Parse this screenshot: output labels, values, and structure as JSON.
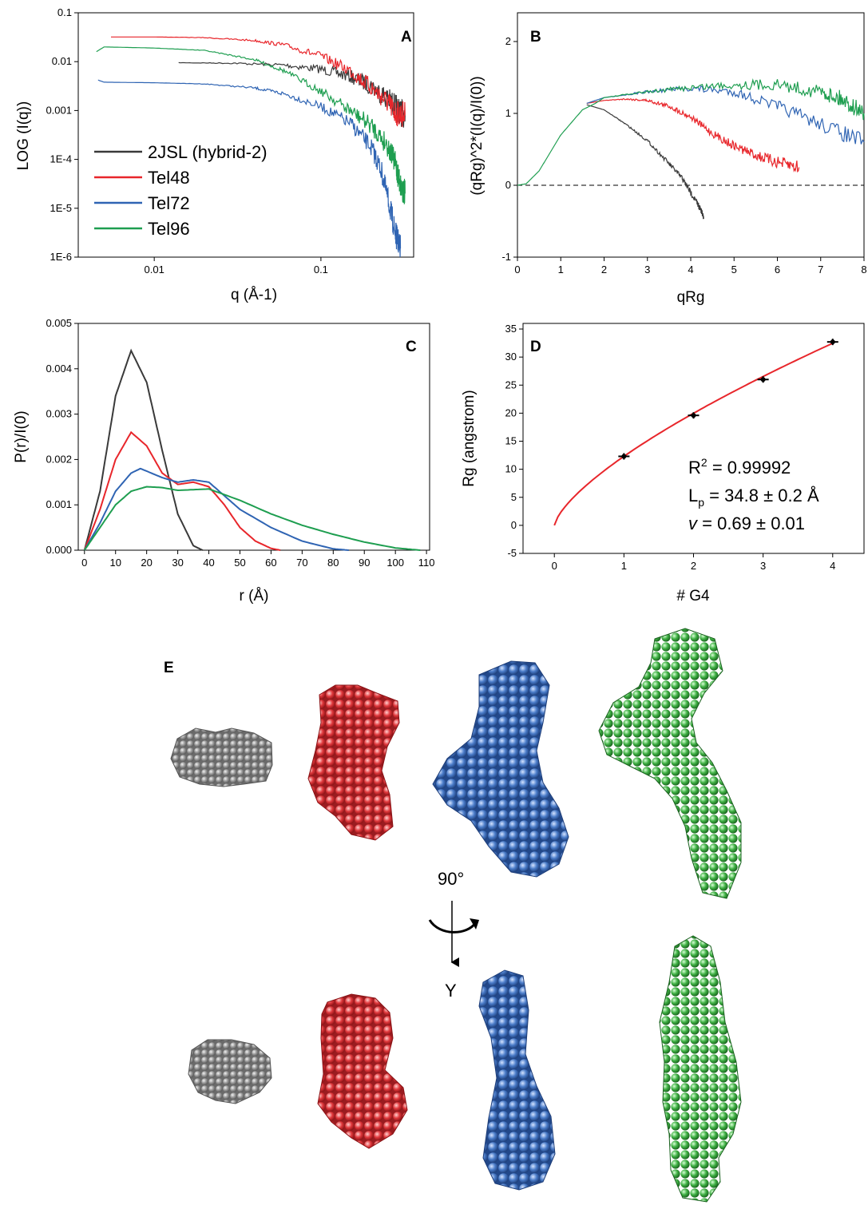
{
  "series_colors": {
    "2JSL (hybrid-2)": "#3a3a3a",
    "Tel48": "#e8262b",
    "Tel72": "#2f64b3",
    "Tel96": "#1e9e50"
  },
  "chart_data": [
    {
      "panel": "A",
      "type": "line",
      "xscale": "log",
      "yscale": "log",
      "xlabel": "q (Å-1)",
      "ylabel": "LOG (I(q))",
      "xlim": [
        0.0035,
        0.36
      ],
      "ylim": [
        1e-06,
        0.1
      ],
      "xticks": [
        {
          "v": 0.01,
          "t": "0.01"
        },
        {
          "v": 0.1,
          "t": "0.1"
        }
      ],
      "yticks": [
        {
          "v": 0.1,
          "t": "0.1"
        },
        {
          "v": 0.01,
          "t": "0.01"
        },
        {
          "v": 0.001,
          "t": "0.001"
        },
        {
          "v": 0.0001,
          "t": "1E-4"
        },
        {
          "v": 1e-05,
          "t": "1E-5"
        },
        {
          "v": 1e-06,
          "t": "1E-6"
        }
      ],
      "legend": "lower-left",
      "series": [
        {
          "name": "2JSL (hybrid-2)",
          "x": [
            0.014,
            0.03,
            0.06,
            0.1,
            0.15,
            0.2,
            0.25,
            0.28,
            0.3,
            0.32
          ],
          "y": [
            0.0095,
            0.0093,
            0.0085,
            0.007,
            0.005,
            0.0032,
            0.0018,
            0.0012,
            0.0009,
            0.0008
          ]
        },
        {
          "name": "Tel48",
          "x": [
            0.0055,
            0.01,
            0.02,
            0.04,
            0.06,
            0.1,
            0.15,
            0.2,
            0.25,
            0.28,
            0.32
          ],
          "y": [
            0.032,
            0.032,
            0.031,
            0.027,
            0.022,
            0.013,
            0.0065,
            0.003,
            0.0015,
            0.0009,
            0.0008
          ]
        },
        {
          "name": "Tel72",
          "x": [
            0.0046,
            0.005,
            0.01,
            0.02,
            0.04,
            0.06,
            0.1,
            0.15,
            0.2,
            0.23,
            0.26,
            0.28,
            0.3
          ],
          "y": [
            0.0042,
            0.0038,
            0.0037,
            0.0035,
            0.0029,
            0.0022,
            0.0012,
            0.00055,
            0.00018,
            6e-05,
            1e-05,
            3e-06,
            1.5e-06
          ]
        },
        {
          "name": "Tel96",
          "x": [
            0.0045,
            0.005,
            0.01,
            0.02,
            0.04,
            0.06,
            0.1,
            0.15,
            0.2,
            0.25,
            0.28,
            0.3,
            0.32
          ],
          "y": [
            0.016,
            0.02,
            0.019,
            0.017,
            0.011,
            0.0065,
            0.0025,
            0.001,
            0.0005,
            0.0002,
            8e-05,
            3e-05,
            2e-05
          ]
        }
      ]
    },
    {
      "panel": "B",
      "type": "line",
      "xlabel": "qRg",
      "ylabel": "(qRg)^2*(I(q)/I(0))",
      "xlim": [
        0,
        8
      ],
      "ylim": [
        -1,
        2.4
      ],
      "xticks": [
        {
          "v": 0,
          "t": "0"
        },
        {
          "v": 1,
          "t": "1"
        },
        {
          "v": 2,
          "t": "2"
        },
        {
          "v": 3,
          "t": "3"
        },
        {
          "v": 4,
          "t": "4"
        },
        {
          "v": 5,
          "t": "5"
        },
        {
          "v": 6,
          "t": "6"
        },
        {
          "v": 7,
          "t": "7"
        },
        {
          "v": 8,
          "t": "8"
        }
      ],
      "yticks": [
        {
          "v": -1,
          "t": "-1"
        },
        {
          "v": 0,
          "t": "0"
        },
        {
          "v": 1,
          "t": "1"
        },
        {
          "v": 2,
          "t": "2"
        }
      ],
      "reference_line": 0,
      "series": [
        {
          "name": "2JSL (hybrid-2)",
          "x": [
            1.6,
            2,
            2.5,
            3,
            3.5,
            3.8,
            4,
            4.2,
            4.3
          ],
          "y": [
            1.12,
            1.05,
            0.85,
            0.62,
            0.3,
            0.1,
            -0.1,
            -0.3,
            -0.45
          ]
        },
        {
          "name": "Tel48",
          "x": [
            1.6,
            2,
            2.5,
            3,
            3.5,
            4,
            4.5,
            5,
            5.5,
            6,
            6.5
          ],
          "y": [
            1.14,
            1.18,
            1.2,
            1.18,
            1.1,
            0.95,
            0.72,
            0.55,
            0.42,
            0.32,
            0.25
          ]
        },
        {
          "name": "Tel72",
          "x": [
            1.6,
            2,
            3,
            4,
            5,
            6,
            7,
            8
          ],
          "y": [
            1.14,
            1.22,
            1.3,
            1.35,
            1.3,
            1.1,
            0.85,
            0.6
          ]
        },
        {
          "name": "Tel96",
          "x": [
            0,
            0.2,
            0.5,
            1,
            1.5,
            1.8,
            2,
            3,
            4,
            5,
            6,
            7,
            7.5,
            8
          ],
          "y": [
            0,
            0.02,
            0.2,
            0.7,
            1.05,
            1.14,
            1.22,
            1.3,
            1.36,
            1.4,
            1.4,
            1.3,
            1.2,
            1.0
          ]
        }
      ]
    },
    {
      "panel": "C",
      "type": "line",
      "xlabel": "r (Å)",
      "ylabel": "P(r)/I(0)",
      "xlim": [
        -2,
        111
      ],
      "ylim": [
        0,
        0.005
      ],
      "xticks": [
        {
          "v": 0,
          "t": "0"
        },
        {
          "v": 10,
          "t": "10"
        },
        {
          "v": 20,
          "t": "20"
        },
        {
          "v": 30,
          "t": "30"
        },
        {
          "v": 40,
          "t": "40"
        },
        {
          "v": 50,
          "t": "50"
        },
        {
          "v": 60,
          "t": "60"
        },
        {
          "v": 70,
          "t": "70"
        },
        {
          "v": 80,
          "t": "80"
        },
        {
          "v": 90,
          "t": "90"
        },
        {
          "v": 100,
          "t": "100"
        },
        {
          "v": 110,
          "t": "110"
        }
      ],
      "yticks": [
        {
          "v": 0,
          "t": "0.000"
        },
        {
          "v": 0.001,
          "t": "0.001"
        },
        {
          "v": 0.002,
          "t": "0.002"
        },
        {
          "v": 0.003,
          "t": "0.003"
        },
        {
          "v": 0.004,
          "t": "0.004"
        },
        {
          "v": 0.005,
          "t": "0.005"
        }
      ],
      "series": [
        {
          "name": "2JSL (hybrid-2)",
          "x": [
            0,
            5,
            10,
            15,
            20,
            25,
            30,
            35,
            38
          ],
          "y": [
            0,
            0.0013,
            0.0034,
            0.0044,
            0.0037,
            0.0022,
            0.0008,
            0.0001,
            0
          ]
        },
        {
          "name": "Tel48",
          "x": [
            0,
            5,
            10,
            15,
            20,
            25,
            30,
            35,
            40,
            45,
            50,
            55,
            60,
            63
          ],
          "y": [
            0,
            0.0009,
            0.002,
            0.0026,
            0.0023,
            0.0017,
            0.00145,
            0.0015,
            0.0014,
            0.001,
            0.0005,
            0.0002,
            4e-05,
            0
          ]
        },
        {
          "name": "Tel72",
          "x": [
            0,
            5,
            10,
            15,
            18,
            25,
            30,
            35,
            40,
            45,
            50,
            60,
            70,
            80,
            85
          ],
          "y": [
            0,
            0.0006,
            0.0013,
            0.0017,
            0.0018,
            0.0016,
            0.0015,
            0.00155,
            0.0015,
            0.0012,
            0.0009,
            0.0005,
            0.0002,
            3e-05,
            0
          ]
        },
        {
          "name": "Tel96",
          "x": [
            0,
            5,
            10,
            15,
            20,
            25,
            30,
            40,
            50,
            60,
            70,
            80,
            90,
            100,
            108
          ],
          "y": [
            0,
            0.0005,
            0.001,
            0.0013,
            0.0014,
            0.00138,
            0.00132,
            0.00135,
            0.0011,
            0.0008,
            0.00055,
            0.00035,
            0.00018,
            5e-05,
            0
          ]
        }
      ]
    },
    {
      "panel": "D",
      "type": "scatter",
      "xlabel": "# G4",
      "ylabel": "Rg (angstrom)",
      "xlim": [
        -0.45,
        4.45
      ],
      "ylim": [
        -5,
        36
      ],
      "xticks": [
        {
          "v": 0,
          "t": "0"
        },
        {
          "v": 1,
          "t": "1"
        },
        {
          "v": 2,
          "t": "2"
        },
        {
          "v": 3,
          "t": "3"
        },
        {
          "v": 4,
          "t": "4"
        }
      ],
      "yticks": [
        {
          "v": -5,
          "t": "-5"
        },
        {
          "v": 0,
          "t": "0"
        },
        {
          "v": 5,
          "t": "5"
        },
        {
          "v": 10,
          "t": "10"
        },
        {
          "v": 15,
          "t": "15"
        },
        {
          "v": 20,
          "t": "20"
        },
        {
          "v": 25,
          "t": "25"
        },
        {
          "v": 30,
          "t": "30"
        },
        {
          "v": 35,
          "t": "35"
        }
      ],
      "points": {
        "x": [
          1,
          2,
          3,
          4
        ],
        "y": [
          12.3,
          19.6,
          26.0,
          32.7
        ]
      },
      "fit": {
        "a": 12.3,
        "b": 0.7
      },
      "annotations": {
        "r2": "= 0.99992",
        "lp": "= 34.8 ± 0.2 Å",
        "nu": "= 0.69 ± 0.01"
      }
    }
  ],
  "panel_labels": {
    "A": "A",
    "B": "B",
    "C": "C",
    "D": "D",
    "E": "E"
  },
  "legend_labels": [
    "2JSL (hybrid-2)",
    "Tel48",
    "Tel72",
    "Tel96"
  ],
  "rotation": {
    "angle": "90°",
    "axis": "Y"
  }
}
